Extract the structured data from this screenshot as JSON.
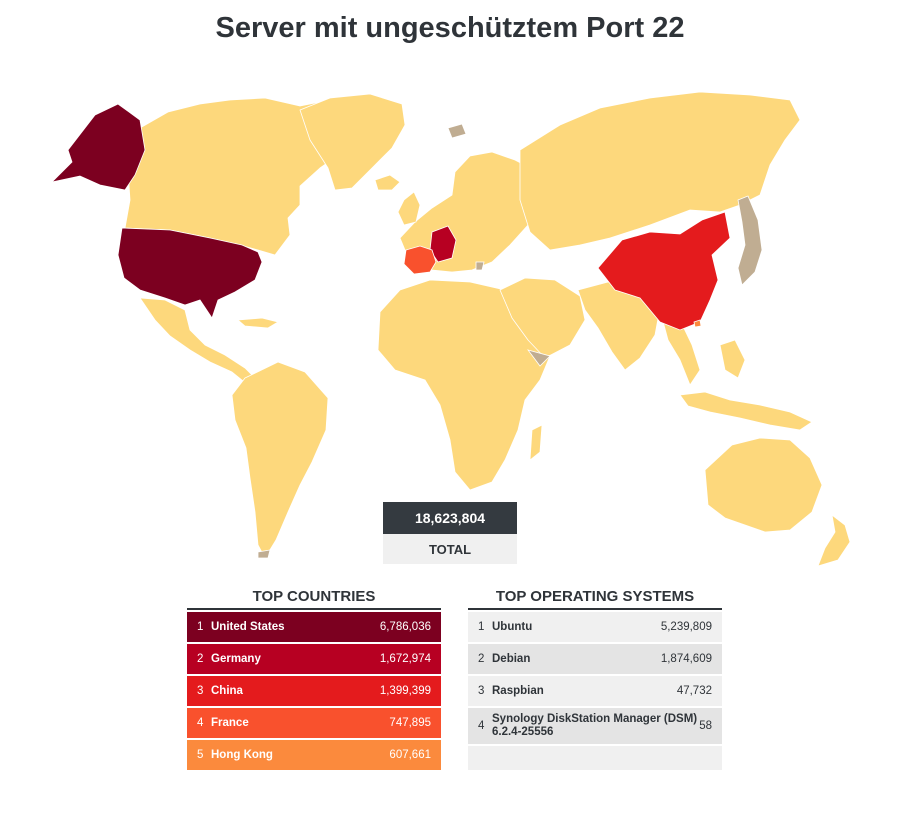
{
  "title": "Server mit ungeschütztem Port 22",
  "total": {
    "value": "18,623,804",
    "label": "TOTAL"
  },
  "top_countries": {
    "title": "TOP COUNTRIES",
    "rows": [
      {
        "rank": "1",
        "name": "United States",
        "value": "6,786,036",
        "color": "#7c0020"
      },
      {
        "rank": "2",
        "name": "Germany",
        "value": "1,672,974",
        "color": "#b70022"
      },
      {
        "rank": "3",
        "name": "China",
        "value": "1,399,399",
        "color": "#e41b1d"
      },
      {
        "rank": "4",
        "name": "France",
        "value": "747,895",
        "color": "#f9512d"
      },
      {
        "rank": "5",
        "name": "Hong Kong",
        "value": "607,661",
        "color": "#fb8a3d"
      }
    ]
  },
  "top_os": {
    "title": "TOP OPERATING SYSTEMS",
    "rows": [
      {
        "rank": "1",
        "name": "Ubuntu",
        "value": "5,239,809",
        "color": "#f0f0f0"
      },
      {
        "rank": "2",
        "name": "Debian",
        "value": "1,874,609",
        "color": "#e4e4e4"
      },
      {
        "rank": "3",
        "name": "Raspbian",
        "value": "47,732",
        "color": "#f0f0f0"
      },
      {
        "rank": "4",
        "name": "Synology DiskStation Manager (DSM) 6.2.4-25556",
        "value": "58",
        "color": "#e4e4e4"
      }
    ]
  },
  "map_colors": {
    "default_land": "#fdd87c",
    "no_data_land": "#c0ad92",
    "united_states": "#7c0020",
    "germany": "#b70022",
    "china": "#e41b1d",
    "france": "#f9512d",
    "hong_kong": "#fb8a3d"
  }
}
